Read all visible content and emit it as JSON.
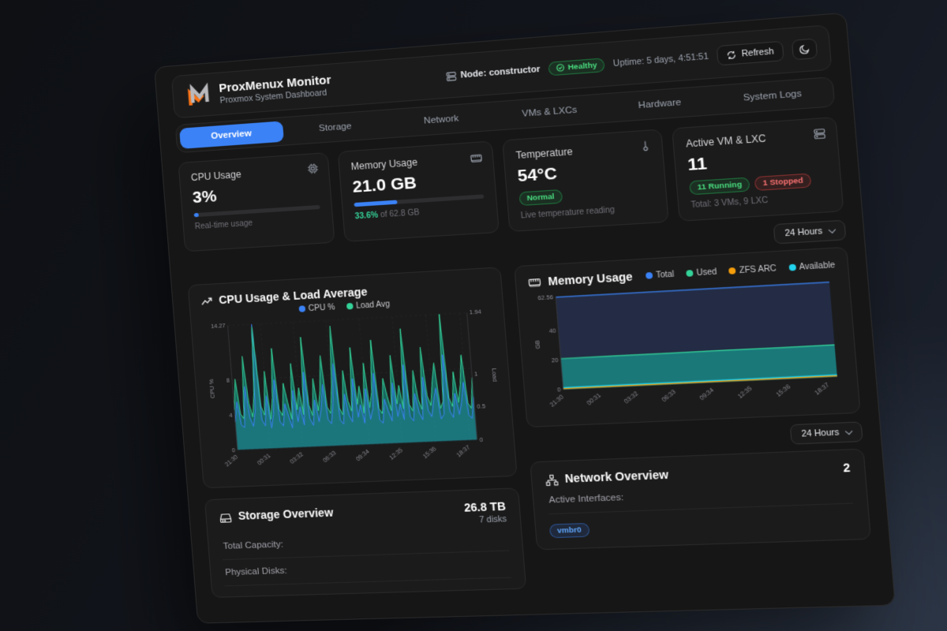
{
  "header": {
    "title": "ProxMenux Monitor",
    "subtitle": "Proxmox System Dashboard"
  },
  "topbar": {
    "node_label": "Node: constructor",
    "health": "Healthy",
    "uptime": "Uptime: 5 days, 4:51:51",
    "refresh": "Refresh"
  },
  "tabs": {
    "items": [
      {
        "label": "Overview",
        "active": true
      },
      {
        "label": "Storage",
        "active": false
      },
      {
        "label": "Network",
        "active": false
      },
      {
        "label": "VMs & LXCs",
        "active": false
      },
      {
        "label": "Hardware",
        "active": false
      },
      {
        "label": "System Logs",
        "active": false
      }
    ]
  },
  "stats": {
    "cpu": {
      "title": "CPU Usage",
      "value": "3%",
      "percent": 3,
      "subtitle": "Real-time usage"
    },
    "memory": {
      "title": "Memory Usage",
      "value": "21.0 GB",
      "percent": 33.6,
      "detail_percent": "33.6%",
      "detail_rest": " of 62.8 GB"
    },
    "temperature": {
      "title": "Temperature",
      "value": "54°C",
      "status": "Normal",
      "subtitle": "Live temperature reading"
    },
    "vms": {
      "title": "Active VM & LXC",
      "value": "11",
      "running": "11 Running",
      "stopped": "1 Stopped",
      "subtitle": "Total: 3 VMs, 9 LXC"
    }
  },
  "time_range": {
    "label": "24 Hours"
  },
  "storage": {
    "title": "Storage Overview",
    "total": "26.8 TB",
    "disks": "7 disks",
    "rows": [
      {
        "label": "Total Capacity:"
      },
      {
        "label": "Physical Disks:"
      }
    ]
  },
  "network": {
    "title": "Network Overview",
    "count": "2",
    "rows": [
      {
        "label": "Active Interfaces:"
      }
    ],
    "interfaces": [
      "vmbr0"
    ]
  },
  "colors": {
    "blue": "#3b82f6",
    "green": "#10b981",
    "orange": "#f59e0b",
    "cyan": "#22d3ee",
    "red": "#ef4444"
  },
  "chart_data": [
    {
      "type": "area",
      "title": "CPU Usage & Load Average",
      "x_labels": [
        "21:30",
        "00:31",
        "03:32",
        "06:33",
        "09:34",
        "12:35",
        "15:36",
        "18:37"
      ],
      "y_left": {
        "label": "CPU %",
        "max": 14.27,
        "ticks": [
          {
            "v": 0,
            "t": "0"
          },
          {
            "v": 4,
            "t": "4"
          },
          {
            "v": 8,
            "t": "8"
          },
          {
            "v": 14.27,
            "t": "14.27"
          }
        ]
      },
      "y_right": {
        "label": "Load",
        "max": 1.94,
        "ticks": [
          {
            "v": 0,
            "t": "0"
          },
          {
            "v": 0.5,
            "t": "0.5"
          },
          {
            "v": 1,
            "t": "1"
          },
          {
            "v": 1.94,
            "t": "1.94"
          }
        ]
      },
      "series": [
        {
          "name": "CPU %",
          "color": "#3b82f6",
          "axis": "left",
          "fill": "#3b82f6",
          "fill_opacity": 0.25,
          "values": [
            3.2,
            5.5,
            2.8,
            2.5,
            7.2,
            3.6,
            2.6,
            4.4,
            14.27,
            3.3,
            2.6,
            6.0,
            2.3,
            3.9,
            7.8,
            3.0,
            2.5,
            5.0,
            3.5,
            2.2,
            6.5,
            2.9,
            4.6,
            2.5,
            8.5,
            3.2,
            2.4,
            5.3,
            2.8,
            4.3,
            7.0,
            3.0,
            2.5,
            4.8,
            9.3,
            2.9,
            2.4,
            5.8,
            3.4,
            2.6,
            7.5,
            3.1,
            4.5,
            2.4,
            6.3,
            2.8,
            4.0,
            8.0,
            2.7,
            2.3,
            5.0,
            3.6,
            2.5,
            6.8,
            3.0,
            4.4,
            2.6,
            8.8,
            2.9,
            2.4,
            5.5,
            3.3,
            2.5,
            7.3,
            3.5,
            2.8,
            4.6,
            6.0,
            2.5,
            3.0,
            9.7,
            3.3,
            2.6,
            5.3,
            2.9,
            4.3,
            6.5,
            2.8,
            2.4,
            4.8
          ]
        },
        {
          "name": "Load Avg",
          "color": "#34d399",
          "axis": "right",
          "fill": "#14b8a6",
          "fill_opacity": 0.5,
          "values": [
            0.62,
            1.1,
            0.55,
            0.48,
            1.45,
            0.72,
            0.5,
            0.88,
            1.9,
            0.66,
            0.52,
            1.2,
            0.45,
            0.78,
            1.55,
            0.6,
            0.5,
            1.0,
            0.7,
            0.44,
            1.3,
            0.58,
            0.92,
            0.5,
            1.7,
            0.64,
            0.48,
            1.05,
            0.55,
            0.85,
            1.4,
            0.6,
            0.5,
            0.95,
            1.85,
            0.58,
            0.47,
            1.15,
            0.68,
            0.52,
            1.5,
            0.62,
            0.9,
            0.48,
            1.25,
            0.56,
            0.8,
            1.6,
            0.54,
            0.46,
            1.0,
            0.72,
            0.5,
            1.35,
            0.6,
            0.88,
            0.52,
            1.75,
            0.58,
            0.48,
            1.1,
            0.65,
            0.5,
            1.45,
            0.7,
            0.55,
            0.92,
            1.2,
            0.5,
            0.6,
            1.94,
            0.66,
            0.52,
            1.05,
            0.58,
            0.85,
            1.3,
            0.56,
            0.48,
            0.95
          ]
        }
      ]
    },
    {
      "type": "area",
      "title": "Memory Usage",
      "x_labels": [
        "21:30",
        "00:31",
        "03:32",
        "06:33",
        "09:34",
        "12:35",
        "15:36",
        "18:37"
      ],
      "y_left": {
        "label": "GB",
        "max": 62.56,
        "ticks": [
          {
            "v": 0,
            "t": "0"
          },
          {
            "v": 20,
            "t": "20"
          },
          {
            "v": 40,
            "t": "40"
          },
          {
            "v": 62.56,
            "t": "62.56"
          }
        ]
      },
      "series": [
        {
          "name": "Total",
          "color": "#3b82f6",
          "axis": "left",
          "fill": "#232c44",
          "fill_opacity": 1,
          "values": [
            62.56,
            62.56
          ]
        },
        {
          "name": "Used",
          "color": "#34d399",
          "axis": "left",
          "fill": "#14b8a6",
          "fill_opacity": 0.55,
          "values": [
            20.9,
            21.0,
            20.95,
            21.05,
            21.0,
            21.1
          ]
        },
        {
          "name": "ZFS ARC",
          "color": "#f59e0b",
          "axis": "left",
          "values": [
            0.6,
            0.6
          ]
        },
        {
          "name": "Available",
          "color": "#22d3ee",
          "axis": "left",
          "values": [
            1.3,
            1.3
          ]
        }
      ]
    }
  ]
}
